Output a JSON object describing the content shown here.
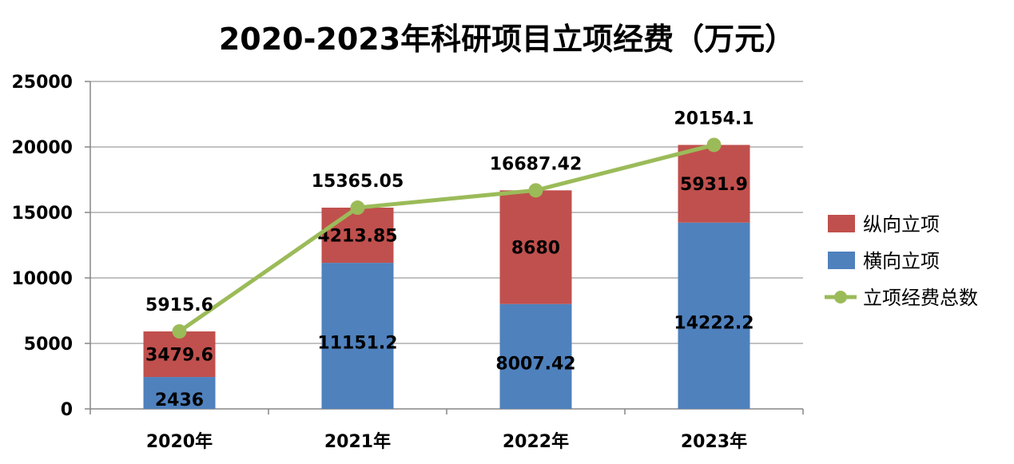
{
  "chart_data": {
    "type": "bar",
    "title": "2020-2023年科研项目立项经费（万元）",
    "categories": [
      "2020年",
      "2021年",
      "2022年",
      "2023年"
    ],
    "ylim": [
      0,
      25000
    ],
    "yticks": [
      0,
      5000,
      10000,
      15000,
      20000,
      25000
    ],
    "grid": true,
    "legend_position": "right",
    "series": [
      {
        "name": "横向立项",
        "kind": "bar-stacked",
        "color": "#4F81BD",
        "values": [
          2436,
          11151.2,
          8007.42,
          14222.2
        ],
        "labels": [
          "2436",
          "11151.2",
          "8007.42",
          "14222.2"
        ]
      },
      {
        "name": "纵向立项",
        "kind": "bar-stacked",
        "color": "#C0504D",
        "values": [
          3479.6,
          4213.85,
          8680,
          5931.9
        ],
        "labels": [
          "3479.6",
          "4213.85",
          "8680",
          "5931.9"
        ]
      },
      {
        "name": "立项经费总数",
        "kind": "line",
        "color": "#9BBB59",
        "values": [
          5915.6,
          15365.05,
          16687.42,
          20154.1
        ],
        "labels": [
          "5915.6",
          "15365.05",
          "16687.42",
          "20154.1"
        ]
      }
    ],
    "legend_order": [
      "纵向立项",
      "横向立项",
      "立项经费总数"
    ],
    "colors": {
      "gridline": "#868686",
      "axis": "#868686"
    }
  }
}
